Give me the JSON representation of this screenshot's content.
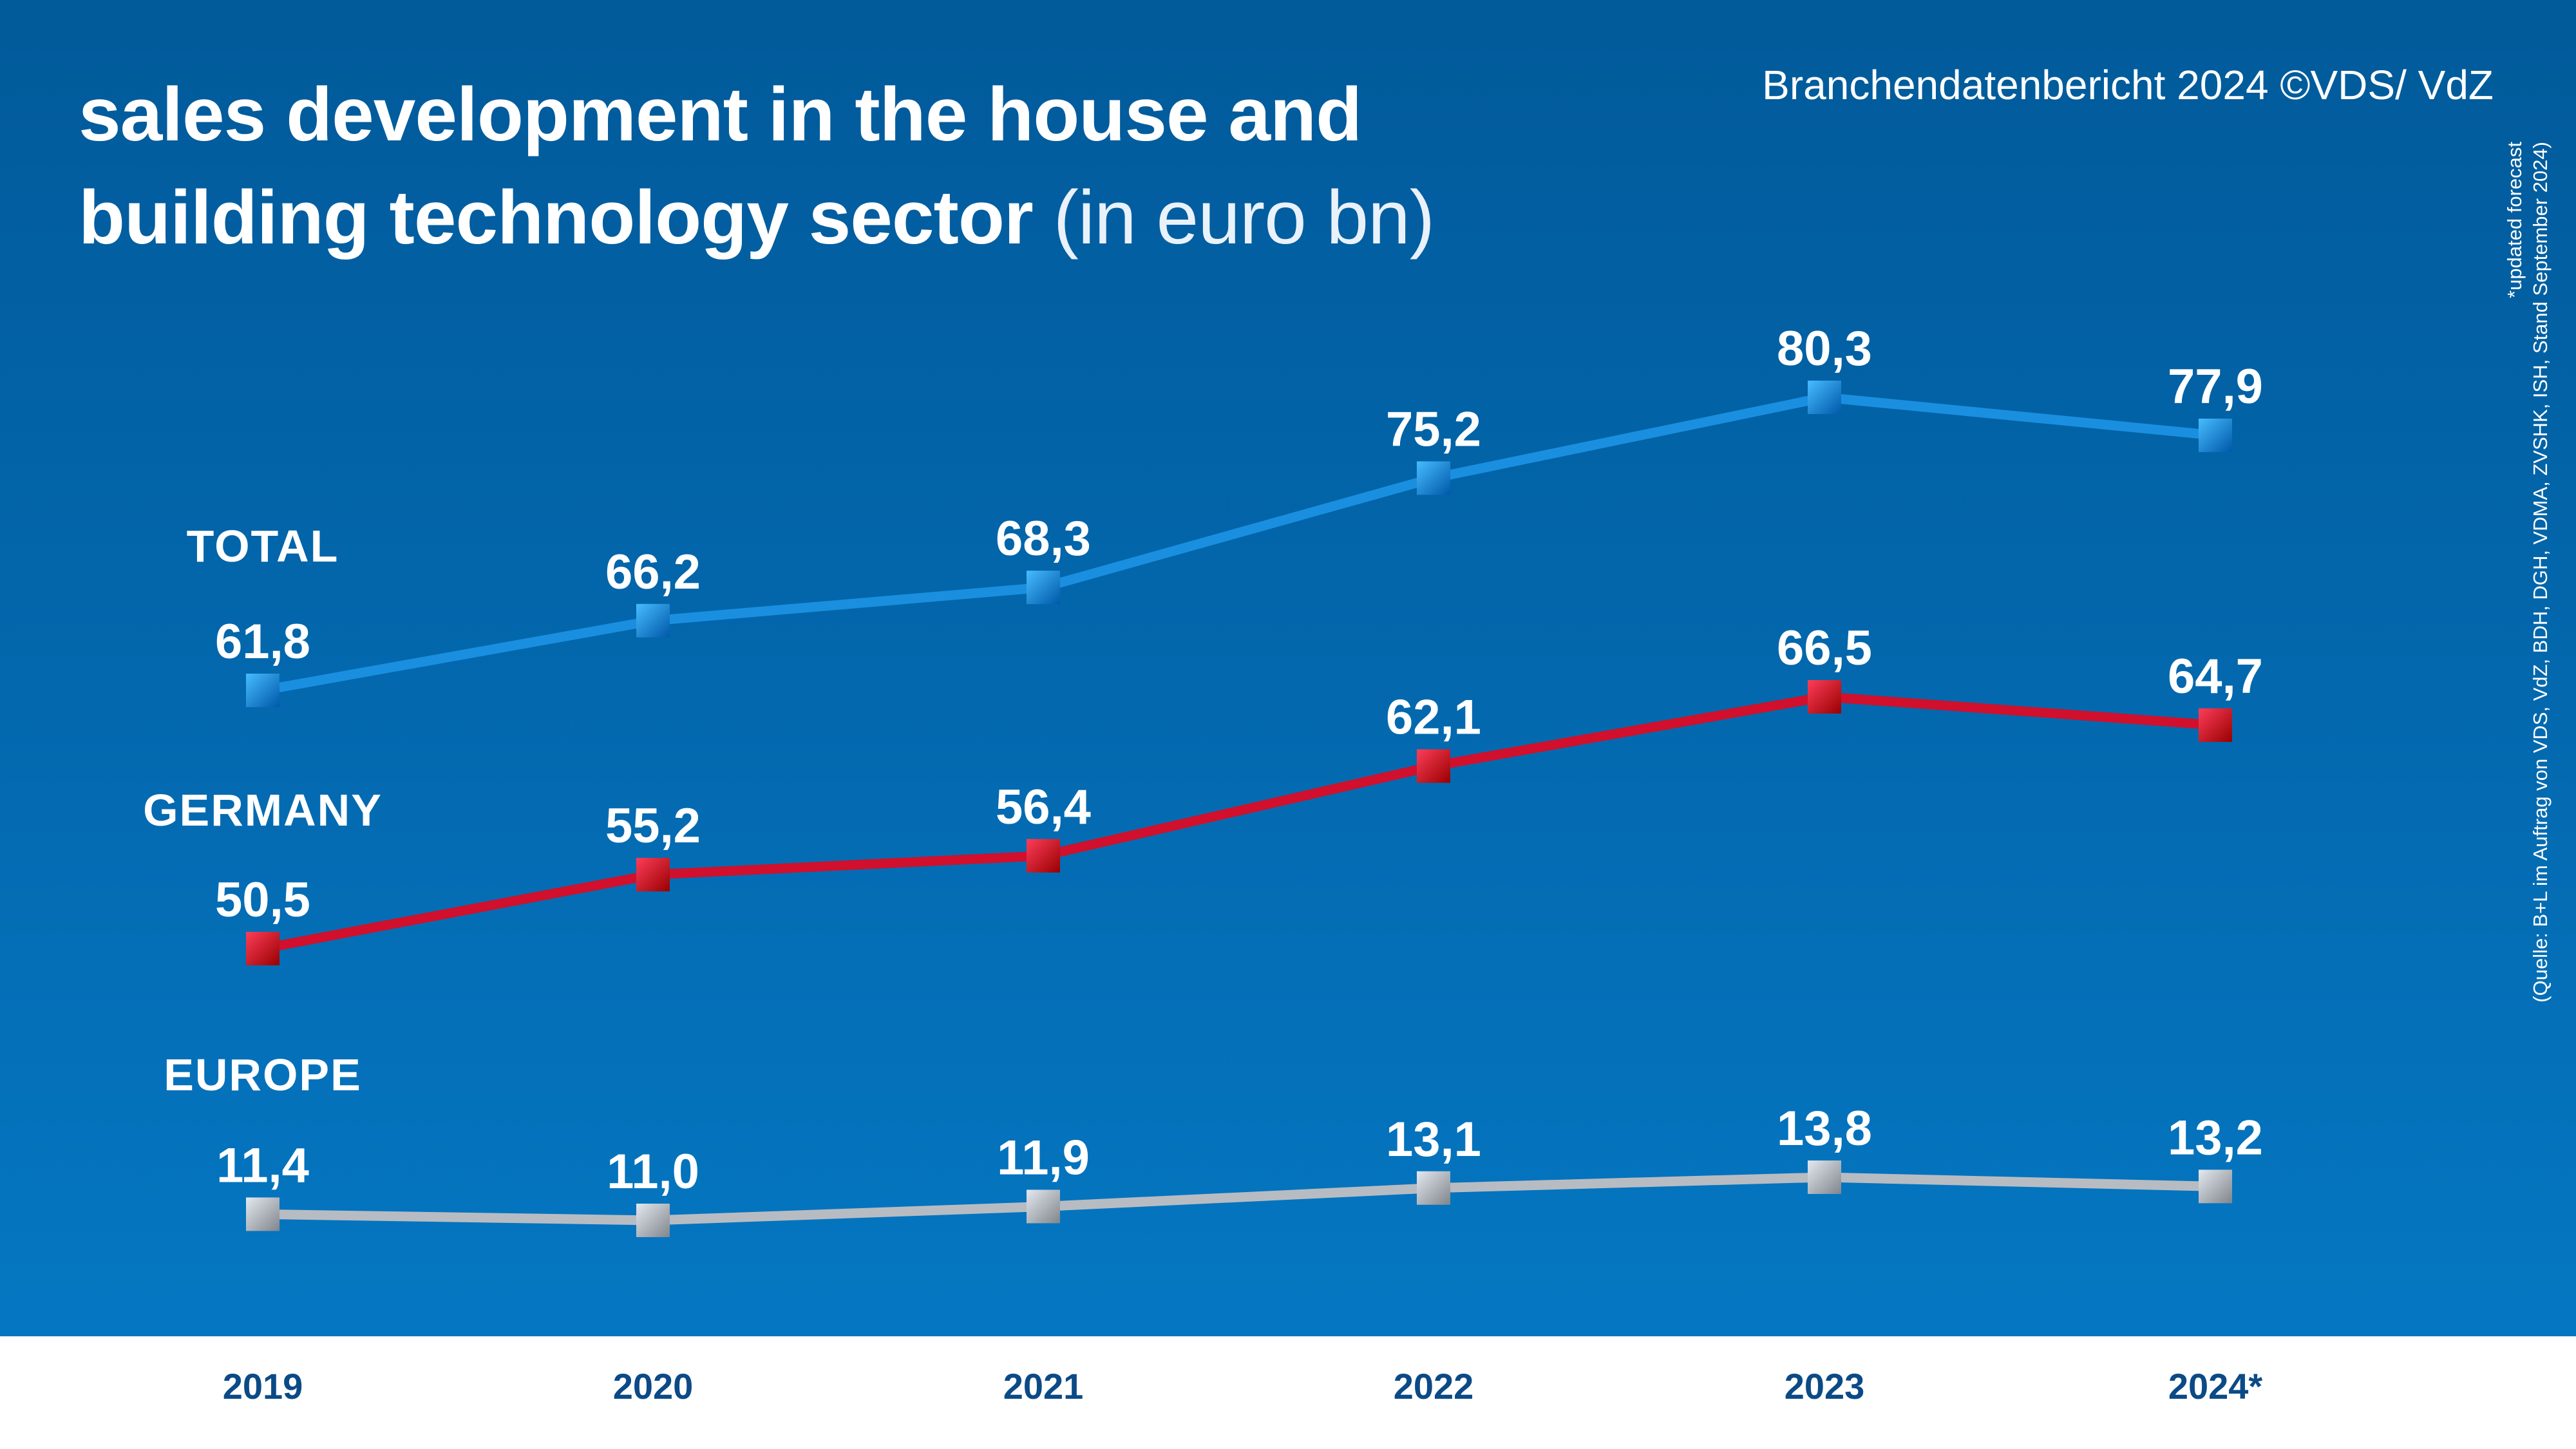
{
  "title": {
    "line1": "sales development in the house and",
    "line2": "building technology sector",
    "unit": "(in euro bn)"
  },
  "report_credit": "Branchendatenbericht 2024 ©VDS/ VdZ",
  "source_note": {
    "forecast": "*updated forecast",
    "source": "(Quelle: B+L im Auftrag von VDS, VdZ, BDH, DGH, VDMA, ZVSHK, ISH, Stand September 2024)"
  },
  "colors": {
    "background_top": "#015a9a",
    "background_bottom": "#0577c2",
    "total": "#1a8fe0",
    "germany": "#d0102c",
    "europe": "#b7bcc3",
    "axis_text": "#0b4a86"
  },
  "chart_data": {
    "type": "line",
    "title": "sales development in the house and building technology sector (in euro bn)",
    "categories": [
      "2019",
      "2020",
      "2021",
      "2022",
      "2023",
      "2024*"
    ],
    "series": [
      {
        "name": "TOTAL",
        "key": "total",
        "values": [
          61.8,
          66.2,
          68.3,
          75.2,
          80.3,
          77.9
        ],
        "labels": [
          "61,8",
          "66,2",
          "68,3",
          "75,2",
          "80,3",
          "77,9"
        ]
      },
      {
        "name": "GERMANY",
        "key": "germany",
        "values": [
          50.5,
          55.2,
          56.4,
          62.1,
          66.5,
          64.7
        ],
        "labels": [
          "50,5",
          "55,2",
          "56,4",
          "62,1",
          "66,5",
          "64,7"
        ]
      },
      {
        "name": "EUROPE",
        "key": "europe",
        "values": [
          11.4,
          11.0,
          11.9,
          13.1,
          13.8,
          13.2
        ],
        "labels": [
          "11,4",
          "11,0",
          "11,9",
          "13,1",
          "13,8",
          "13,2"
        ]
      }
    ],
    "xlabel": "",
    "ylabel": "",
    "grid": false,
    "y_axis_shown": false
  }
}
